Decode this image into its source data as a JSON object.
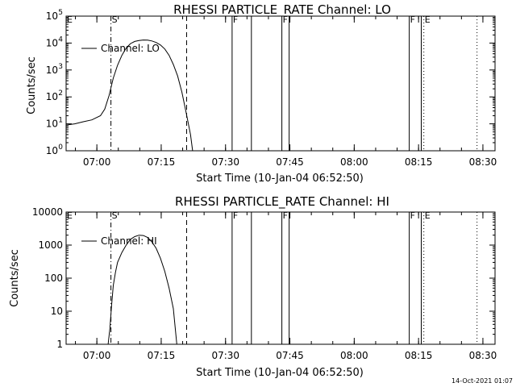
{
  "footer": {
    "stamp": "14-Oct-2021 01:07"
  },
  "chart_data": [
    {
      "type": "line",
      "title": "RHESSI PARTICLE_RATE Channel: LO",
      "xlabel": "Start Time (10-Jan-04 06:52:50)",
      "ylabel": "Counts/sec",
      "yscale": "log",
      "ylim": [
        1,
        100000
      ],
      "xlim_min": [
        0,
        100
      ],
      "x_unit": "minutes after 06:52:50",
      "x_ticks": [
        {
          "t": 7.17,
          "label": "07:00"
        },
        {
          "t": 22.17,
          "label": "07:15"
        },
        {
          "t": 37.17,
          "label": "07:30"
        },
        {
          "t": 52.17,
          "label": "07:45"
        },
        {
          "t": 67.17,
          "label": "08:00"
        },
        {
          "t": 82.17,
          "label": "08:15"
        },
        {
          "t": 97.17,
          "label": "08:30"
        }
      ],
      "y_ticks": [
        {
          "v": 1,
          "label": "10",
          "exp": "0"
        },
        {
          "v": 10,
          "label": "10",
          "exp": "1"
        },
        {
          "v": 100,
          "label": "10",
          "exp": "2"
        },
        {
          "v": 1000,
          "label": "10",
          "exp": "3"
        },
        {
          "v": 10000,
          "label": "10",
          "exp": "4"
        },
        {
          "v": 100000,
          "label": "10",
          "exp": "5"
        }
      ],
      "legend": {
        "label": "Channel: LO",
        "position": "top-left"
      },
      "series": [
        {
          "name": "Channel: LO",
          "points": [
            [
              0,
              9
            ],
            [
              2,
              10
            ],
            [
              4,
              12
            ],
            [
              6,
              14
            ],
            [
              8,
              20
            ],
            [
              9,
              35
            ],
            [
              10,
              110
            ],
            [
              11,
              500
            ],
            [
              12,
              1500
            ],
            [
              13,
              3500
            ],
            [
              14,
              6500
            ],
            [
              15,
              9500
            ],
            [
              16,
              11500
            ],
            [
              17,
              12500
            ],
            [
              18,
              13000
            ],
            [
              19,
              12800
            ],
            [
              20,
              12000
            ],
            [
              21,
              10500
            ],
            [
              22,
              8500
            ],
            [
              23,
              6000
            ],
            [
              24,
              3500
            ],
            [
              25,
              1600
            ],
            [
              26,
              600
            ],
            [
              27,
              150
            ],
            [
              28,
              25
            ],
            [
              29,
              4
            ],
            [
              29.5,
              1
            ]
          ]
        }
      ],
      "markers": [
        {
          "t": 0,
          "style": "none",
          "label": "E"
        },
        {
          "t": 10.45,
          "style": "dashdot",
          "label": "S"
        },
        {
          "t": 28.1,
          "style": "dashed",
          "label": ""
        },
        {
          "t": 38.7,
          "style": "solid",
          "label": "F"
        },
        {
          "t": 43.2,
          "style": "solid",
          "label": ""
        },
        {
          "t": 50.3,
          "style": "solid",
          "label": "F"
        },
        {
          "t": 52.0,
          "style": "solid",
          "label": ""
        },
        {
          "t": 80.0,
          "style": "solid",
          "label": "F"
        },
        {
          "t": 82.8,
          "style": "solid",
          "label": ""
        },
        {
          "t": 83.4,
          "style": "dotted",
          "label": "E"
        },
        {
          "t": 95.8,
          "style": "dotted",
          "label": ""
        }
      ]
    },
    {
      "type": "line",
      "title": "RHESSI PARTICLE_RATE Channel: HI",
      "xlabel": "Start Time (10-Jan-04 06:52:50)",
      "ylabel": "Counts/sec",
      "yscale": "log",
      "ylim": [
        1,
        10000
      ],
      "xlim_min": [
        0,
        100
      ],
      "x_unit": "minutes after 06:52:50",
      "x_ticks": [
        {
          "t": 7.17,
          "label": "07:00"
        },
        {
          "t": 22.17,
          "label": "07:15"
        },
        {
          "t": 37.17,
          "label": "07:30"
        },
        {
          "t": 52.17,
          "label": "07:45"
        },
        {
          "t": 67.17,
          "label": "08:00"
        },
        {
          "t": 82.17,
          "label": "08:15"
        },
        {
          "t": 97.17,
          "label": "08:30"
        }
      ],
      "y_ticks": [
        {
          "v": 1,
          "label": "1",
          "exp": ""
        },
        {
          "v": 10,
          "label": "10",
          "exp": ""
        },
        {
          "v": 100,
          "label": "100",
          "exp": ""
        },
        {
          "v": 1000,
          "label": "1000",
          "exp": ""
        },
        {
          "v": 10000,
          "label": "10000",
          "exp": ""
        }
      ],
      "legend": {
        "label": "Channel: HI",
        "position": "top-left"
      },
      "series": [
        {
          "name": "Channel: HI",
          "points": [
            [
              9.8,
              1
            ],
            [
              10.2,
              3
            ],
            [
              10.6,
              15
            ],
            [
              11,
              60
            ],
            [
              11.5,
              150
            ],
            [
              12,
              300
            ],
            [
              13,
              600
            ],
            [
              14,
              1000
            ],
            [
              15,
              1500
            ],
            [
              16,
              1800
            ],
            [
              17,
              2000
            ],
            [
              18,
              1950
            ],
            [
              19,
              1700
            ],
            [
              20,
              1250
            ],
            [
              21,
              800
            ],
            [
              22,
              400
            ],
            [
              23,
              160
            ],
            [
              24,
              50
            ],
            [
              25,
              12
            ],
            [
              25.8,
              1
            ]
          ]
        }
      ],
      "markers": [
        {
          "t": 0,
          "style": "none",
          "label": "E"
        },
        {
          "t": 10.45,
          "style": "dashdot",
          "label": "S"
        },
        {
          "t": 28.1,
          "style": "dashed",
          "label": ""
        },
        {
          "t": 38.7,
          "style": "solid",
          "label": "F"
        },
        {
          "t": 43.2,
          "style": "solid",
          "label": ""
        },
        {
          "t": 50.3,
          "style": "solid",
          "label": "F"
        },
        {
          "t": 52.0,
          "style": "solid",
          "label": ""
        },
        {
          "t": 80.0,
          "style": "solid",
          "label": "F"
        },
        {
          "t": 82.8,
          "style": "solid",
          "label": ""
        },
        {
          "t": 83.4,
          "style": "dotted",
          "label": "E"
        },
        {
          "t": 95.8,
          "style": "dotted",
          "label": ""
        }
      ]
    }
  ]
}
